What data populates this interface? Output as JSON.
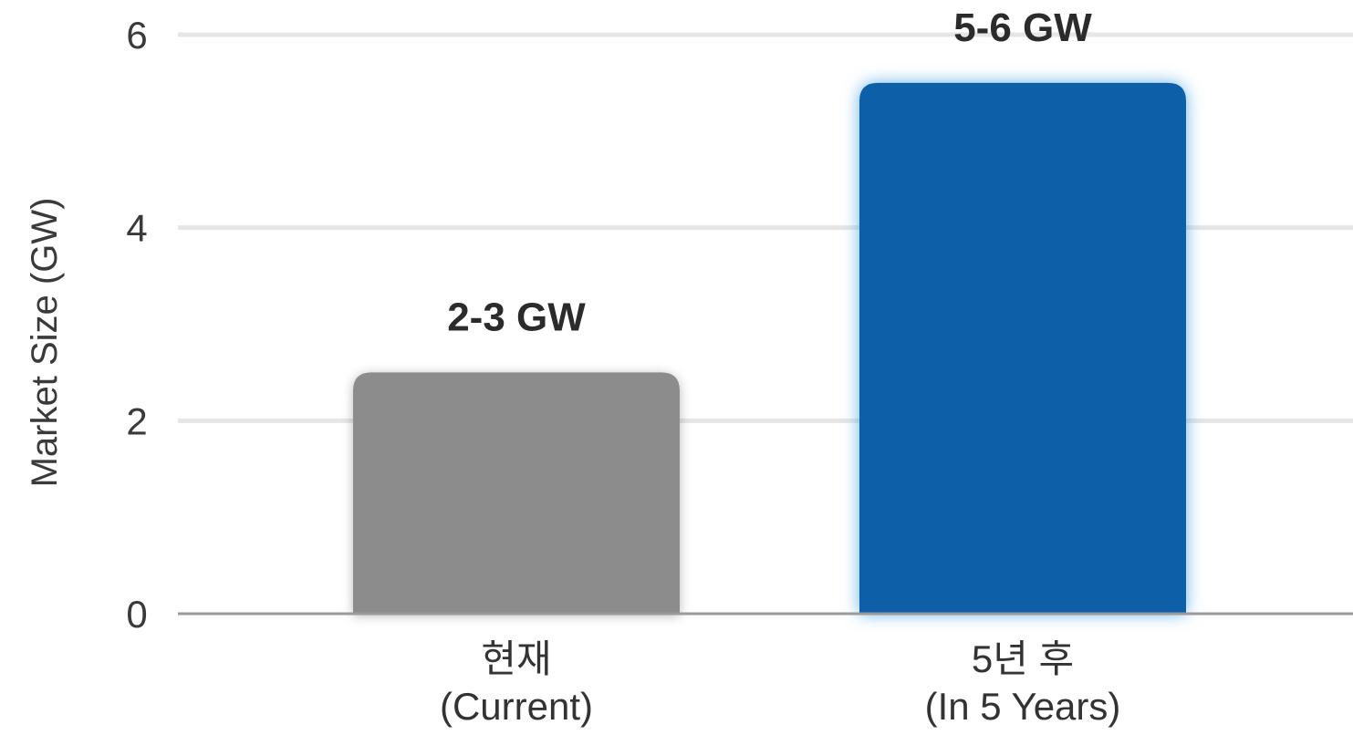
{
  "chart_data": {
    "type": "bar",
    "categories": [
      "현재\n(Current)",
      "5년 후\n(In 5 Years)"
    ],
    "values": [
      2.5,
      5.5
    ],
    "data_labels": [
      "2-3 GW",
      "5-6 GW"
    ],
    "title": "",
    "xlabel": "",
    "ylabel": "Market Size (GW)",
    "ylim": [
      0,
      6
    ],
    "yticks": [
      0,
      2,
      4,
      6
    ],
    "grid": true,
    "bar_colors": [
      "#8c8c8c",
      "#0b5fa8"
    ],
    "highlight_glow": "#4da6e8",
    "gridline_color": "#e6e6e6",
    "axis_color": "#9a9a9a"
  }
}
